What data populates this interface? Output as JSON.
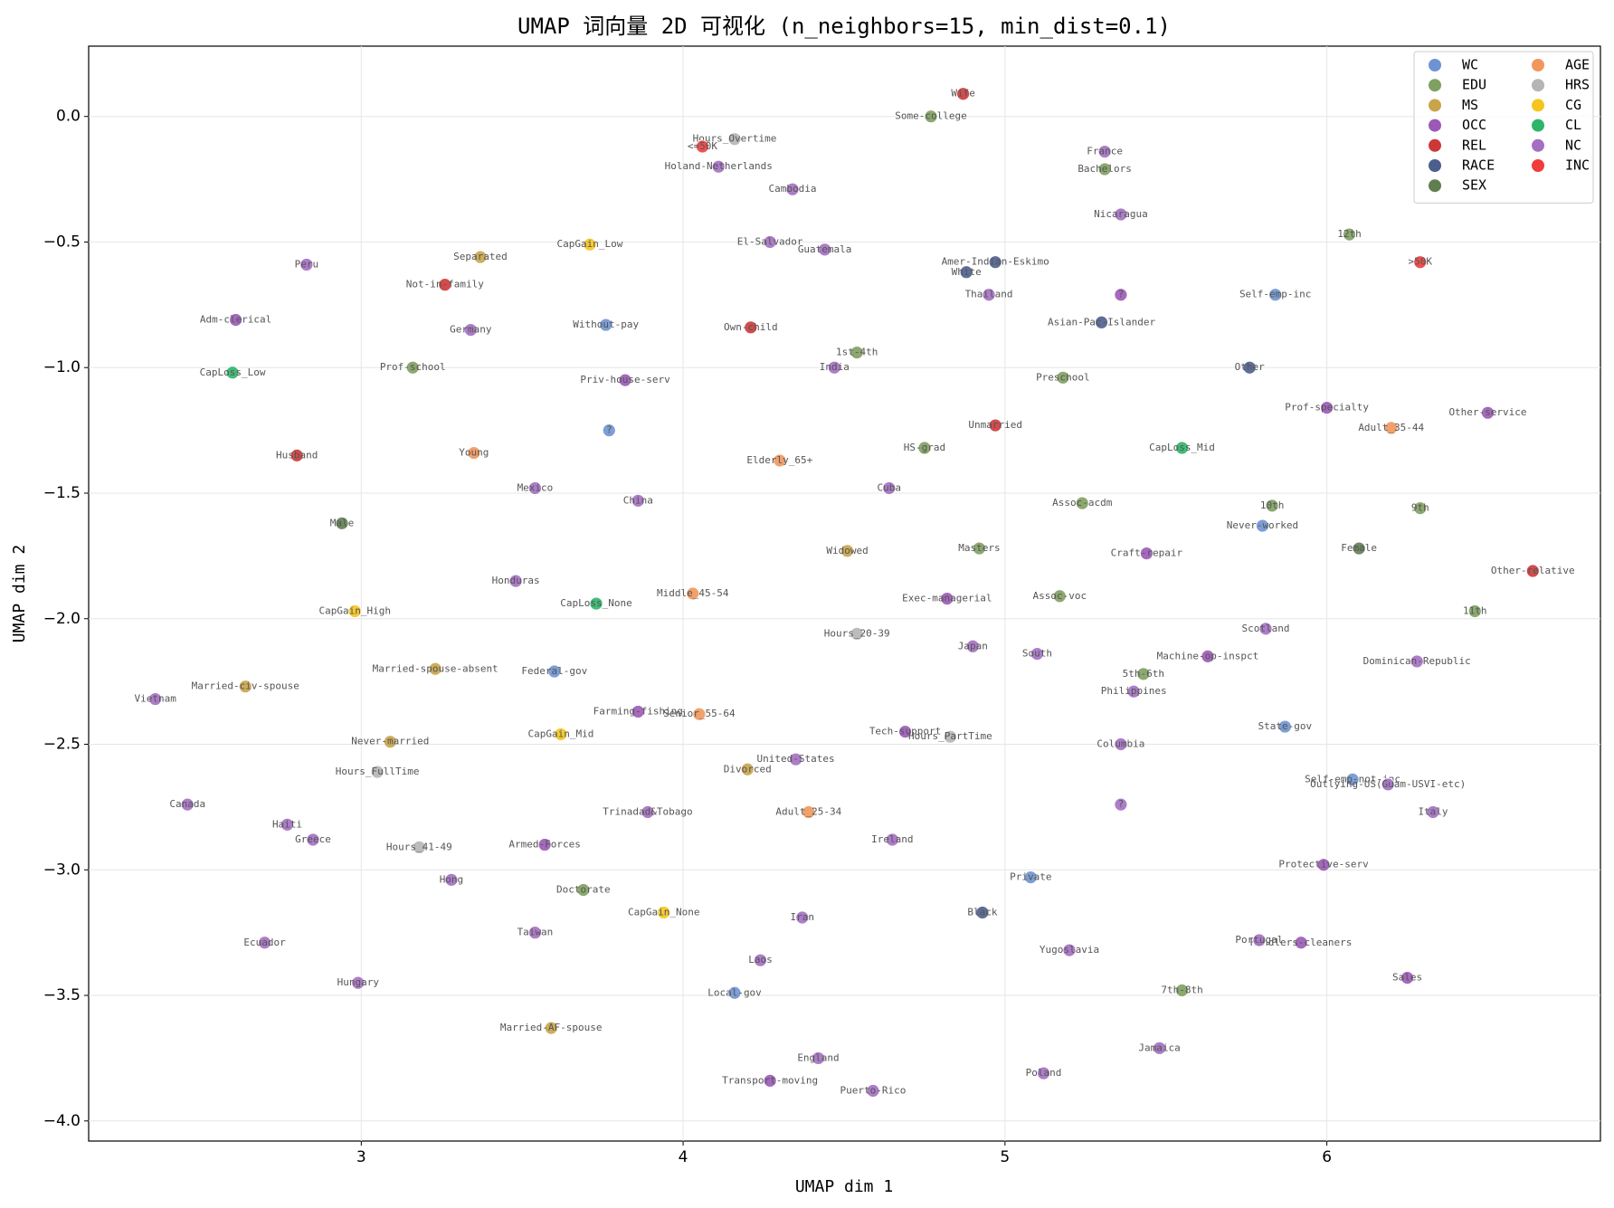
{
  "chart_data": {
    "type": "scatter",
    "title": "UMAP 词向量 2D 可视化 (n_neighbors=15, min_dist=0.1)",
    "x_label": "UMAP dim 1",
    "y_label": "UMAP dim 2",
    "xlim": [
      2.153,
      6.85
    ],
    "ylim": [
      -4.08,
      0.28
    ],
    "xticks": [
      3,
      4,
      5,
      6
    ],
    "yticks": [
      {
        "value": 0,
        "label": "0.0"
      },
      {
        "value": -0.5,
        "label": "−0.5"
      },
      {
        "value": -1,
        "label": "−1.0"
      },
      {
        "value": -1.5,
        "label": "−1.5"
      },
      {
        "value": -2,
        "label": "−2.0"
      },
      {
        "value": -2.5,
        "label": "−2.5"
      },
      {
        "value": -3,
        "label": "−3.0"
      },
      {
        "value": -3.5,
        "label": "−3.5"
      },
      {
        "value": -4,
        "label": "−4.0"
      }
    ],
    "grid": true,
    "legend": "upper right",
    "series": [
      {
        "name": "WC",
        "color": "#6f93d2",
        "labels": [
          "Without-pay",
          "?",
          "Federal-gov",
          "Self-emp-inc",
          "Never-worked",
          "State-gov",
          "Self-emp-not-inc",
          "Private",
          "Local-gov"
        ],
        "x": [
          3.76,
          3.77,
          3.6,
          5.84,
          5.8,
          5.87,
          6.08,
          5.08,
          4.16
        ],
        "values": [
          -0.83,
          -1.25,
          -2.21,
          -0.71,
          -1.63,
          -2.43,
          -2.64,
          -3.03,
          -3.49
        ]
      },
      {
        "name": "EDU",
        "color": "#7fa060",
        "labels": [
          "Some-college",
          "Bachelors",
          "12th",
          "1st-4th",
          "Preschool",
          "Prof-school",
          "HS-grad",
          "Assoc-acdm",
          "10th",
          "9th",
          "Masters",
          "Assoc-voc",
          "11th",
          "5th-6th",
          "Doctorate",
          "7th-8th"
        ],
        "x": [
          4.77,
          5.31,
          6.07,
          4.54,
          5.18,
          3.16,
          4.75,
          5.24,
          5.83,
          6.29,
          4.92,
          5.17,
          6.46,
          5.43,
          3.69,
          5.55
        ],
        "values": [
          0.0,
          -0.21,
          -0.47,
          -0.94,
          -1.04,
          -1.0,
          -1.32,
          -1.54,
          -1.55,
          -1.56,
          -1.72,
          -1.91,
          -1.97,
          -2.22,
          -3.08,
          -3.48
        ]
      },
      {
        "name": "MS",
        "color": "#c9a44a",
        "labels": [
          "Separated",
          "Married-civ-spouse",
          "Married-spouse-absent",
          "Never-married",
          "Widowed",
          "Divorced",
          "Married-AF-spouse"
        ],
        "x": [
          3.37,
          2.64,
          3.23,
          3.09,
          4.51,
          4.2,
          3.59
        ],
        "values": [
          -0.56,
          -2.27,
          -2.2,
          -2.49,
          -1.73,
          -2.6,
          -3.63
        ]
      },
      {
        "name": "OCC",
        "color": "#9b59b6",
        "labels": [
          "Adm-clerical",
          "Priv-house-serv",
          "Exec-managerial",
          "Craft-repair",
          "Machine-op-inspct",
          "Prof-specialty",
          "Other-service",
          "Farming-fishing",
          "Tech-support",
          "Armed-Forces",
          "Protective-serv",
          "Handlers-cleaners",
          "Sales",
          "Transport-moving",
          "?"
        ],
        "x": [
          2.61,
          3.82,
          4.82,
          5.44,
          5.63,
          6.0,
          6.5,
          3.86,
          4.69,
          3.57,
          5.99,
          5.92,
          6.25,
          4.27,
          5.36
        ],
        "values": [
          -0.81,
          -1.05,
          -1.92,
          -1.74,
          -2.15,
          -1.16,
          -1.18,
          -2.37,
          -2.45,
          -2.9,
          -2.98,
          -3.29,
          -3.43,
          -3.84,
          -0.71
        ]
      },
      {
        "name": "REL",
        "color": "#cc3838",
        "labels": [
          "Not-in-family",
          "Own-child",
          "Husband",
          "Unmarried",
          "Wife",
          "Other-relative"
        ],
        "x": [
          3.26,
          4.21,
          2.8,
          4.97,
          4.87,
          6.64
        ],
        "values": [
          -0.67,
          -0.84,
          -1.35,
          -1.23,
          0.09,
          -1.81
        ]
      },
      {
        "name": "RACE",
        "color": "#4c5f8c",
        "labels": [
          "Amer-Indian-Eskimo",
          "White",
          "Asian-Pac-Islander",
          "Other",
          "Black"
        ],
        "x": [
          4.97,
          4.88,
          5.3,
          5.76,
          4.93
        ],
        "values": [
          -0.58,
          -0.62,
          -0.82,
          -1.0,
          -3.17
        ]
      },
      {
        "name": "SEX",
        "color": "#5f7f50",
        "labels": [
          "Male",
          "Female"
        ],
        "x": [
          2.94,
          6.1
        ],
        "values": [
          -1.62,
          -1.72
        ]
      },
      {
        "name": "AGE",
        "color": "#f0975c",
        "labels": [
          "Young",
          "Elderly_65+",
          "Middle_45-54",
          "Senior_55-64",
          "Adult_25-34",
          "Adult_35-44"
        ],
        "x": [
          3.35,
          4.3,
          4.03,
          4.05,
          4.39,
          6.2
        ],
        "values": [
          -1.34,
          -1.37,
          -1.9,
          -2.38,
          -2.77,
          -1.24
        ]
      },
      {
        "name": "HRS",
        "color": "#b5b5b5",
        "labels": [
          "Hours_Overtime",
          "Hours_20-39",
          "Hours_PartTime",
          "Hours_FullTime",
          "Hours_41-49"
        ],
        "x": [
          4.16,
          4.54,
          4.83,
          3.05,
          3.18
        ],
        "values": [
          -0.09,
          -2.06,
          -2.47,
          -2.61,
          -2.91
        ]
      },
      {
        "name": "CG",
        "color": "#f5c51e",
        "labels": [
          "CapGain_Low",
          "CapGain_High",
          "CapGain_Mid",
          "CapGain_None"
        ],
        "x": [
          3.71,
          2.98,
          3.62,
          3.94
        ],
        "values": [
          -0.51,
          -1.97,
          -2.46,
          -3.17
        ]
      },
      {
        "name": "CL",
        "color": "#2db56a",
        "labels": [
          "CapLoss_Low",
          "CapLoss_None",
          "CapLoss_Mid"
        ],
        "x": [
          2.6,
          3.73,
          5.55
        ],
        "values": [
          -1.02,
          -1.94,
          -1.32
        ]
      },
      {
        "name": "NC",
        "color": "#a46fc2",
        "labels": [
          "Peru",
          "Germany",
          "Mexico",
          "China",
          "Honduras",
          "Vietnam",
          "Canada",
          "Haiti",
          "Greece",
          "Hong",
          "Ecuador",
          "Hungary",
          "Taiwan",
          "Trinadad&Tobago",
          "Laos",
          "Iran",
          "England",
          "Puerto-Rico",
          "Ireland",
          "United-States",
          "Japan",
          "South",
          "Philippines",
          "Columbia",
          "?",
          "Yugoslavia",
          "Poland",
          "Jamaica",
          "Portugal",
          "Scotland",
          "Dominican-Republic",
          "Outlying-US(Guam-USVI-etc)",
          "Italy",
          "Thailand",
          "Nicaragua",
          "France",
          "Cambodia",
          "Holand-Netherlands",
          "El-Salvador",
          "Guatemala",
          "India",
          "Cuba"
        ],
        "x": [
          2.83,
          3.34,
          3.54,
          3.86,
          3.48,
          2.36,
          2.46,
          2.77,
          2.85,
          3.28,
          2.7,
          2.99,
          3.54,
          3.89,
          4.24,
          4.37,
          4.42,
          4.59,
          4.65,
          4.35,
          4.9,
          5.1,
          5.4,
          5.36,
          5.36,
          5.2,
          5.12,
          5.48,
          5.79,
          5.81,
          6.28,
          6.19,
          6.33,
          4.95,
          5.36,
          5.31,
          4.34,
          4.11,
          4.27,
          4.44,
          4.47,
          4.64
        ],
        "values": [
          -0.59,
          -0.85,
          -1.48,
          -1.53,
          -1.85,
          -2.32,
          -2.74,
          -2.82,
          -2.88,
          -3.04,
          -3.29,
          -3.45,
          -3.25,
          -2.77,
          -3.36,
          -3.19,
          -3.75,
          -3.88,
          -2.88,
          -2.56,
          -2.11,
          -2.14,
          -2.29,
          -2.5,
          -2.74,
          -3.32,
          -3.81,
          -3.71,
          -3.28,
          -2.04,
          -2.17,
          -2.66,
          -2.77,
          -0.71,
          -0.39,
          -0.14,
          -0.29,
          -0.2,
          -0.5,
          -0.53,
          -1.0,
          -1.48
        ]
      },
      {
        "name": "INC",
        "color": "#f23c3c",
        "labels": [
          "<=50K",
          ">50K"
        ],
        "x": [
          4.06,
          6.29
        ],
        "values": [
          -0.12,
          -0.58
        ]
      }
    ]
  }
}
